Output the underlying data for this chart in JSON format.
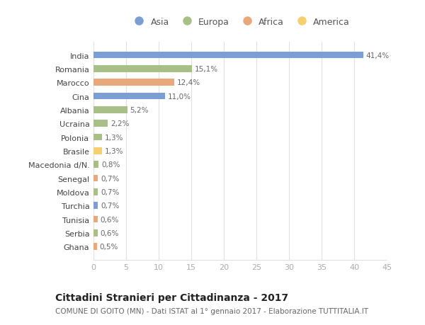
{
  "categories": [
    "India",
    "Romania",
    "Marocco",
    "Cina",
    "Albania",
    "Ucraina",
    "Polonia",
    "Brasile",
    "Macedonia d/N.",
    "Senegal",
    "Moldova",
    "Turchia",
    "Tunisia",
    "Serbia",
    "Ghana"
  ],
  "values": [
    41.4,
    15.1,
    12.4,
    11.0,
    5.2,
    2.2,
    1.3,
    1.3,
    0.8,
    0.7,
    0.7,
    0.7,
    0.6,
    0.6,
    0.5
  ],
  "labels": [
    "41,4%",
    "15,1%",
    "12,4%",
    "11,0%",
    "5,2%",
    "2,2%",
    "1,3%",
    "1,3%",
    "0,8%",
    "0,7%",
    "0,7%",
    "0,7%",
    "0,6%",
    "0,6%",
    "0,5%"
  ],
  "continents": [
    "Asia",
    "Europa",
    "Africa",
    "Asia",
    "Europa",
    "Europa",
    "Europa",
    "America",
    "Europa",
    "Africa",
    "Europa",
    "Asia",
    "Africa",
    "Europa",
    "Africa"
  ],
  "continent_colors": {
    "Asia": "#7b9fd4",
    "Europa": "#a8bf87",
    "Africa": "#e8a87c",
    "America": "#f5d06e"
  },
  "legend_items": [
    "Asia",
    "Europa",
    "Africa",
    "America"
  ],
  "title": "Cittadini Stranieri per Cittadinanza - 2017",
  "subtitle": "COMUNE DI GOITO (MN) - Dati ISTAT al 1° gennaio 2017 - Elaborazione TUTTITALIA.IT",
  "xlim": [
    0,
    45
  ],
  "xticks": [
    0,
    5,
    10,
    15,
    20,
    25,
    30,
    35,
    40,
    45
  ],
  "bg_color": "#ffffff",
  "grid_color": "#e0e0e0",
  "bar_height": 0.5
}
